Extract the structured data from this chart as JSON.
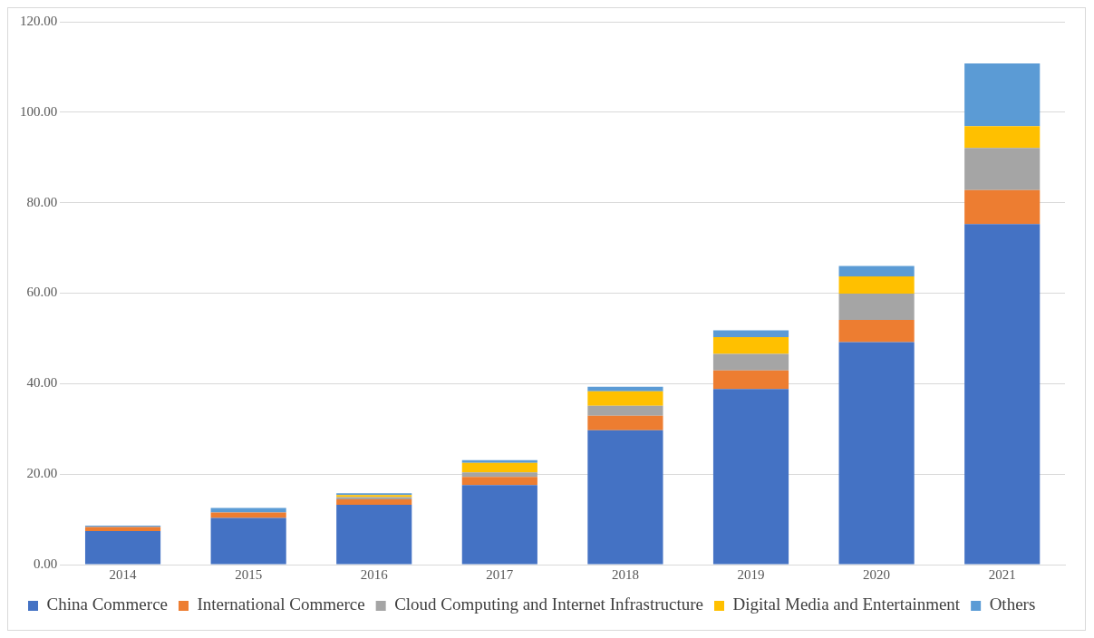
{
  "chart_data": {
    "type": "bar",
    "stacked": true,
    "categories": [
      "2014",
      "2015",
      "2016",
      "2017",
      "2018",
      "2019",
      "2020",
      "2021"
    ],
    "series": [
      {
        "name": "China Commerce",
        "color": "#4472c4",
        "values": [
          7.4,
          10.3,
          13.2,
          17.6,
          29.7,
          38.8,
          49.2,
          75.3
        ]
      },
      {
        "name": "International Commerce",
        "color": "#ed7d31",
        "values": [
          0.9,
          1.2,
          1.2,
          1.8,
          3.2,
          4.1,
          4.9,
          7.5
        ]
      },
      {
        "name": "Cloud Computing and Internet Infrastructure",
        "color": "#a5a5a5",
        "values": [
          0,
          0,
          0.5,
          1.0,
          2.2,
          3.7,
          5.8,
          9.3
        ]
      },
      {
        "name": "Digital Media and Entertainment",
        "color": "#ffc000",
        "values": [
          0,
          0,
          0.5,
          2.1,
          3.2,
          3.7,
          3.8,
          4.8
        ]
      },
      {
        "name": "Others",
        "color": "#5b9bd5",
        "values": [
          0.3,
          1.0,
          0.4,
          0.6,
          1.0,
          1.5,
          2.3,
          13.9
        ]
      }
    ],
    "ylim": [
      0,
      120
    ],
    "yticks": [
      {
        "value": 0,
        "label": "0.00"
      },
      {
        "value": 20,
        "label": "20.00"
      },
      {
        "value": 40,
        "label": "40.00"
      },
      {
        "value": 60,
        "label": "60.00"
      },
      {
        "value": 80,
        "label": "80.00"
      },
      {
        "value": 100,
        "label": "100.00"
      },
      {
        "value": 120,
        "label": "120.00"
      }
    ],
    "grid": "y",
    "legend": "bottom"
  }
}
